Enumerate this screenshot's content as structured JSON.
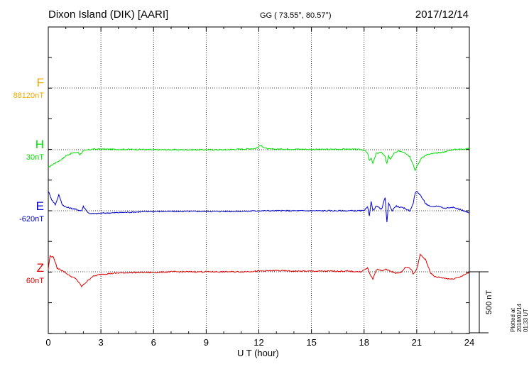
{
  "header": {
    "station": "Dixon Island (DIK)  [AARI]",
    "coords": "GG ( 73.55°,  80.57°)",
    "date": "2017/12/14"
  },
  "footer": {
    "plotted": "Plotted at 2018/01/14 01:33 UT"
  },
  "colors": {
    "F": "#f0a800",
    "H": "#00e000",
    "E": "#0000cc",
    "Z": "#dd0000"
  },
  "chart_data": {
    "type": "line",
    "xlabel": "U T (hour)",
    "xlim": [
      0,
      24
    ],
    "xticks": [
      0,
      3,
      6,
      9,
      12,
      15,
      18,
      21,
      24
    ],
    "scale_bar": "500 nT",
    "channels": [
      {
        "name": "F",
        "baseline": "88120nT"
      },
      {
        "name": "H",
        "baseline": "30nT"
      },
      {
        "name": "E",
        "baseline": "-620nT"
      },
      {
        "name": "Z",
        "baseline": "60nT"
      }
    ],
    "series": [
      {
        "name": "H",
        "x": [
          0,
          0.2,
          0.5,
          0.8,
          1.0,
          1.3,
          1.7,
          1.8,
          2.0,
          2.3,
          2.6,
          3.0,
          4,
          5,
          6,
          7,
          8,
          9,
          10,
          11,
          11.8,
          12.1,
          12.3,
          12.5,
          13,
          14,
          15,
          16,
          17,
          18.0,
          18.2,
          18.3,
          18.4,
          18.5,
          18.7,
          19.0,
          19.2,
          19.3,
          19.4,
          19.5,
          19.7,
          20.0,
          20.3,
          20.6,
          20.8,
          20.9,
          21.0,
          21.3,
          21.6,
          22.0,
          22.5,
          23.0,
          23.5,
          24
        ],
        "values": [
          -145,
          -125,
          -100,
          -75,
          -50,
          -30,
          -20,
          -40,
          -10,
          0,
          5,
          5,
          3,
          3,
          0,
          0,
          0,
          0,
          0,
          5,
          10,
          35,
          20,
          5,
          5,
          5,
          3,
          3,
          5,
          0,
          -30,
          -90,
          -70,
          -110,
          -30,
          -20,
          -60,
          -115,
          -50,
          -80,
          -30,
          -10,
          -20,
          -55,
          -120,
          -170,
          -140,
          -60,
          -40,
          -30,
          -20,
          0,
          5,
          10
        ]
      },
      {
        "name": "E",
        "x": [
          0,
          0.2,
          0.4,
          0.6,
          0.8,
          1.0,
          1.3,
          1.6,
          1.9,
          2.0,
          2.3,
          2.6,
          3,
          4,
          5,
          6,
          7,
          8,
          9,
          10,
          11,
          12,
          13,
          14,
          15,
          16,
          17,
          18.0,
          18.2,
          18.3,
          18.4,
          18.5,
          18.7,
          19.0,
          19.2,
          19.3,
          19.4,
          19.6,
          19.8,
          20.0,
          20.3,
          20.6,
          20.8,
          20.9,
          21.0,
          21.2,
          21.5,
          21.8,
          22.2,
          22.6,
          23.0,
          23.5,
          24
        ],
        "values": [
          160,
          90,
          50,
          130,
          50,
          30,
          20,
          10,
          0,
          35,
          -20,
          -25,
          -20,
          -15,
          -10,
          -5,
          -5,
          -5,
          -5,
          -5,
          -5,
          0,
          0,
          0,
          0,
          0,
          0,
          0,
          30,
          -40,
          80,
          0,
          40,
          10,
          110,
          -90,
          60,
          0,
          40,
          30,
          20,
          0,
          60,
          140,
          160,
          130,
          60,
          30,
          40,
          20,
          30,
          10,
          -20
        ]
      },
      {
        "name": "Z",
        "x": [
          0,
          0.1,
          0.3,
          0.5,
          0.8,
          1.2,
          1.6,
          1.9,
          2.2,
          2.5,
          3,
          4,
          5,
          6,
          7,
          8,
          9,
          10,
          11,
          12,
          13,
          14,
          15,
          16,
          17,
          17.8,
          18.2,
          18.4,
          18.5,
          18.7,
          19.0,
          19.3,
          19.5,
          19.8,
          20.1,
          20.4,
          20.7,
          20.8,
          21.0,
          21.2,
          21.5,
          21.8,
          22.0,
          22.5,
          23.0,
          23.5,
          24
        ],
        "values": [
          20,
          130,
          120,
          30,
          10,
          -30,
          -60,
          -120,
          -80,
          -40,
          -20,
          -10,
          -5,
          -5,
          0,
          0,
          0,
          0,
          0,
          5,
          10,
          5,
          5,
          5,
          5,
          0,
          30,
          -40,
          -60,
          20,
          10,
          20,
          5,
          -10,
          -5,
          40,
          20,
          -20,
          20,
          140,
          100,
          -10,
          -40,
          -50,
          -60,
          -40,
          -5
        ]
      }
    ]
  }
}
